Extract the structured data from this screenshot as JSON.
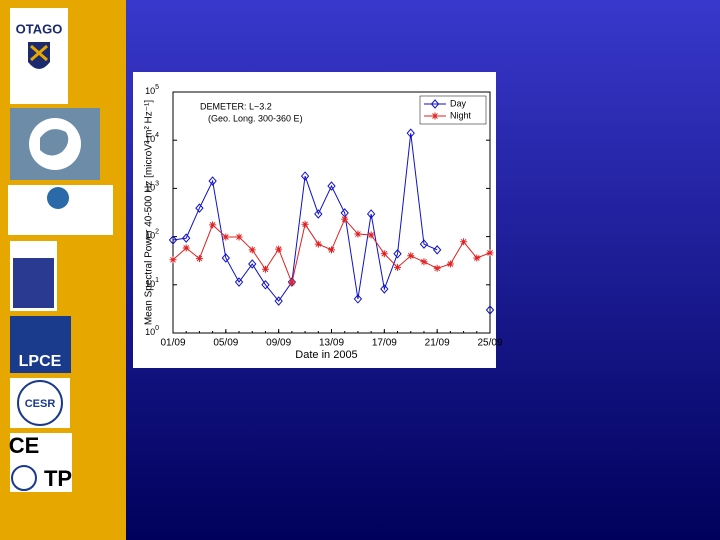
{
  "logos": [
    "OTAGO",
    "LPCE",
    "CESR",
    "CE",
    "TP"
  ],
  "chart_data": {
    "type": "line",
    "annotations": [
      "DEMETER:  L~3.2",
      "(Geo. Long. 300-360 E)"
    ],
    "x_label": "Date in 2005",
    "y_label": "Mean Spectral Power 40-500 Hz [microV² m² Hz⁻¹]",
    "x": [
      1,
      2,
      3,
      4,
      5,
      6,
      7,
      8,
      9,
      10,
      11,
      12,
      13,
      14,
      15,
      16,
      17,
      18,
      19,
      20,
      21,
      22,
      23,
      24,
      25
    ],
    "xlim": [
      1,
      25
    ],
    "xticks": [
      {
        "value": 1,
        "label": "01/09"
      },
      {
        "value": 5,
        "label": "05/09"
      },
      {
        "value": 9,
        "label": "09/09"
      },
      {
        "value": 13,
        "label": "13/09"
      },
      {
        "value": 17,
        "label": "17/09"
      },
      {
        "value": 21,
        "label": "21/09"
      },
      {
        "value": 25,
        "label": "25/09"
      }
    ],
    "ylim": [
      1,
      100000
    ],
    "log_y": true,
    "yticks": [
      {
        "value": 1,
        "label": "10",
        "exponent": "0"
      },
      {
        "value": 10,
        "label": "10",
        "exponent": "1"
      },
      {
        "value": 100,
        "label": "10",
        "exponent": "2"
      },
      {
        "value": 1000,
        "label": "10",
        "exponent": "3"
      },
      {
        "value": 10000,
        "label": "10",
        "exponent": "4"
      },
      {
        "value": 100000,
        "label": "10",
        "exponent": "5"
      }
    ],
    "legend": "upper right",
    "series": [
      {
        "name": "Day",
        "color": "#1010c8",
        "marker": "diamond",
        "values": [
          85,
          93,
          390,
          1420,
          36,
          11.4,
          27,
          10,
          4.6,
          11.4,
          1800,
          295,
          1120,
          310,
          5.1,
          295,
          8.2,
          44,
          14000,
          70,
          53,
          null,
          null,
          null,
          3.0
        ]
      },
      {
        "name": "Night",
        "color": "#e02020",
        "marker": "star",
        "values": [
          33,
          58,
          35,
          175,
          98,
          98,
          53,
          21,
          55,
          11,
          180,
          70,
          53,
          230,
          113,
          108,
          44,
          23,
          40,
          30,
          22,
          27,
          78,
          36,
          46
        ]
      }
    ]
  }
}
